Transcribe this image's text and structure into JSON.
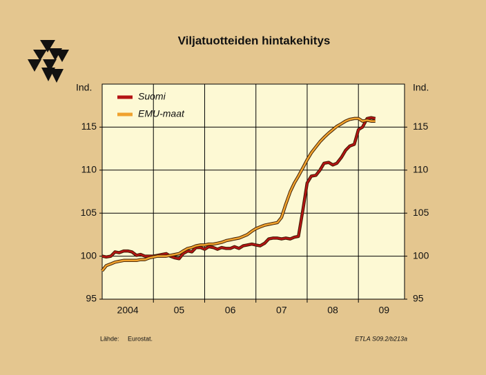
{
  "chart_data": {
    "type": "line",
    "title": "Viljatuotteiden hintakehitys",
    "y_label": "Ind.",
    "y2_label": "Ind.",
    "source_label": "Lähde:",
    "source": "Eurostat.",
    "code": "ETLA S09.2/b213a",
    "x": [
      2004.0,
      2004.08,
      2004.17,
      2004.25,
      2004.33,
      2004.42,
      2004.5,
      2004.58,
      2004.67,
      2004.75,
      2004.83,
      2004.92,
      2005.0,
      2005.08,
      2005.17,
      2005.25,
      2005.33,
      2005.42,
      2005.5,
      2005.58,
      2005.67,
      2005.75,
      2005.83,
      2005.92,
      2006.0,
      2006.08,
      2006.17,
      2006.25,
      2006.33,
      2006.42,
      2006.5,
      2006.58,
      2006.67,
      2006.75,
      2006.83,
      2006.92,
      2007.0,
      2007.08,
      2007.17,
      2007.25,
      2007.33,
      2007.42,
      2007.5,
      2007.58,
      2007.67,
      2007.75,
      2007.83,
      2007.92,
      2008.0,
      2008.08,
      2008.17,
      2008.25,
      2008.33,
      2008.42,
      2008.5,
      2008.58,
      2008.67,
      2008.75,
      2008.83,
      2008.92,
      2009.0,
      2009.08,
      2009.17,
      2009.25,
      2009.33
    ],
    "series": [
      {
        "name": "Suomi",
        "color": "#b41414",
        "values": [
          100.0,
          99.9,
          100.0,
          100.5,
          100.4,
          100.6,
          100.6,
          100.5,
          100.1,
          100.2,
          100.0,
          100.0,
          100.0,
          100.1,
          100.2,
          100.3,
          100.0,
          99.8,
          99.7,
          100.3,
          100.6,
          100.5,
          101.0,
          101.0,
          100.8,
          101.1,
          101.0,
          100.8,
          101.0,
          100.9,
          100.9,
          101.1,
          100.9,
          101.2,
          101.3,
          101.4,
          101.3,
          101.2,
          101.5,
          102.0,
          102.1,
          102.1,
          102.0,
          102.1,
          102.0,
          102.2,
          102.3,
          105.5,
          108.5,
          109.3,
          109.4,
          110.0,
          110.8,
          110.9,
          110.6,
          110.8,
          111.5,
          112.3,
          112.8,
          113.0,
          114.7,
          115.0,
          116.0,
          116.1,
          116.0
        ]
      },
      {
        "name": "EMU-maat",
        "color": "#f0a22e",
        "values": [
          98.3,
          98.9,
          99.1,
          99.3,
          99.4,
          99.5,
          99.5,
          99.5,
          99.5,
          99.6,
          99.6,
          99.8,
          99.9,
          100.0,
          100.0,
          100.0,
          100.1,
          100.2,
          100.3,
          100.6,
          100.9,
          101.0,
          101.2,
          101.3,
          101.3,
          101.4,
          101.4,
          101.5,
          101.6,
          101.8,
          101.9,
          102.0,
          102.1,
          102.3,
          102.5,
          102.9,
          103.2,
          103.4,
          103.6,
          103.7,
          103.8,
          103.9,
          104.5,
          106.0,
          107.5,
          108.5,
          109.3,
          110.3,
          111.2,
          112.0,
          112.7,
          113.3,
          113.8,
          114.3,
          114.7,
          115.1,
          115.4,
          115.7,
          115.9,
          116.0,
          116.0,
          115.7,
          115.8,
          115.7,
          115.7
        ]
      }
    ],
    "xlim": [
      2004,
      2009.9
    ],
    "xticks": [
      {
        "value": 2004.5,
        "label": "2004"
      },
      {
        "value": 2005.5,
        "label": "05"
      },
      {
        "value": 2006.5,
        "label": "06"
      },
      {
        "value": 2007.5,
        "label": "07"
      },
      {
        "value": 2008.5,
        "label": "08"
      },
      {
        "value": 2009.5,
        "label": "09"
      }
    ],
    "xgrid": [
      2005,
      2006,
      2007,
      2008,
      2009
    ],
    "ylim": [
      95,
      120
    ],
    "yticks": [
      95,
      100,
      105,
      110,
      115
    ],
    "grid": true
  }
}
